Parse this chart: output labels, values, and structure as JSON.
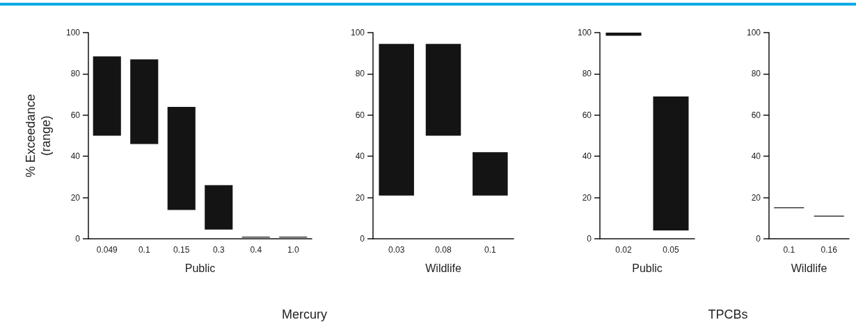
{
  "chart_data": [
    {
      "type": "bar",
      "ylabel": "% Exceedance\n(range)",
      "xlabel": "Public",
      "categories": [
        "0.049",
        "0.1",
        "0.15",
        "0.3",
        "0.4",
        "1.0"
      ],
      "base": [
        50,
        46,
        14,
        4.5,
        0.6,
        0.6
      ],
      "values": [
        38.5,
        41,
        50,
        21.5,
        0.4,
        0.4
      ],
      "color": "#141414",
      "ylim": [
        0,
        100
      ],
      "yticks": [
        0,
        20,
        40,
        60,
        80,
        100
      ],
      "annotations": [
        "Mercury"
      ]
    },
    {
      "type": "bar",
      "xlabel": "Wildlife",
      "categories": [
        "0.03",
        "0.08",
        "0.1"
      ],
      "base": [
        21,
        50,
        21
      ],
      "values": [
        73.5,
        44.5,
        21
      ],
      "color": "#141414",
      "ylim": [
        0,
        100
      ],
      "yticks": [
        0,
        20,
        40,
        60,
        80,
        100
      ]
    },
    {
      "type": "bar",
      "xlabel": "Public",
      "categories": [
        "0.02",
        "0.05"
      ],
      "base": [
        98.5,
        4
      ],
      "values": [
        1.5,
        65
      ],
      "color": "#141414",
      "ylim": [
        0,
        100
      ],
      "yticks": [
        0,
        20,
        40,
        60,
        80,
        100
      ],
      "annotations": [
        "TPCBs"
      ]
    },
    {
      "type": "bar",
      "xlabel": "Wildlife",
      "categories": [
        "0.1",
        "0.16"
      ],
      "base": [
        14.8,
        10.8
      ],
      "values": [
        0.4,
        0.4
      ],
      "color": "#141414",
      "ylim": [
        0,
        100
      ],
      "yticks": [
        0,
        20,
        40,
        60,
        80,
        100
      ]
    }
  ]
}
